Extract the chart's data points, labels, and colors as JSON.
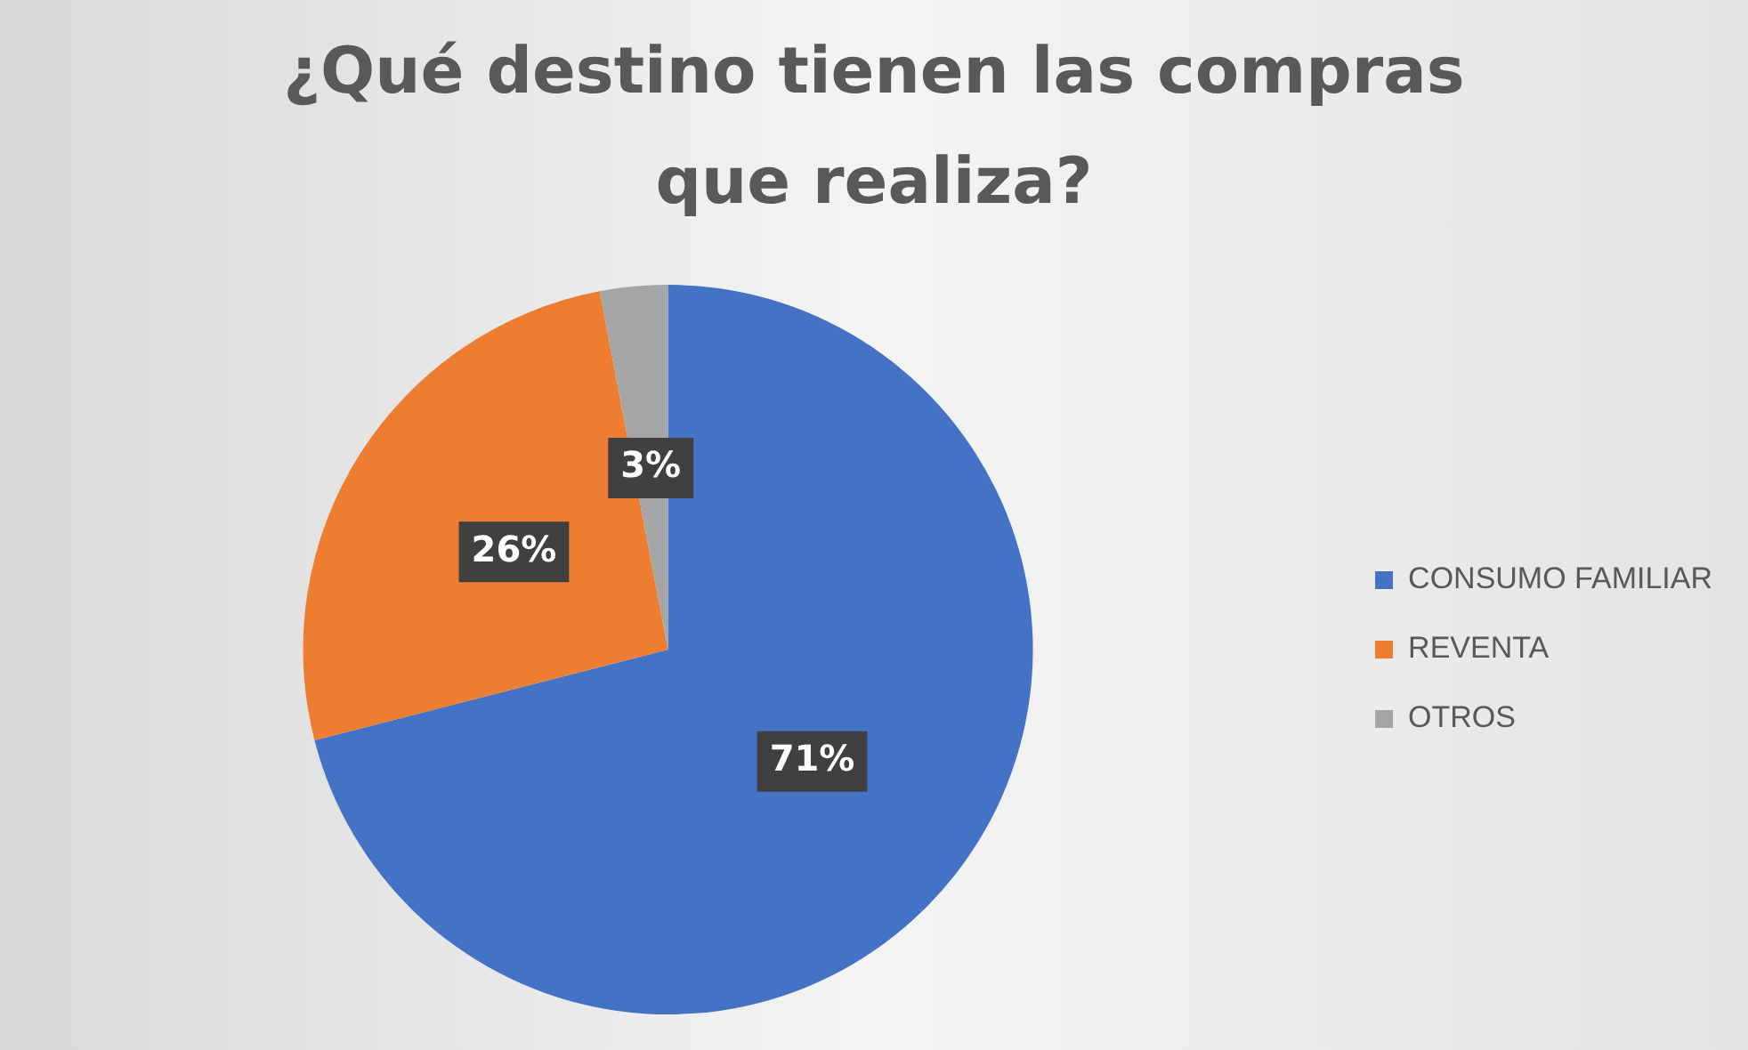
{
  "chart_data": {
    "type": "pie",
    "title": "¿Qué destino tienen las compras que realiza?",
    "categories": [
      "CONSUMO FAMILIAR",
      "REVENTA",
      "OTROS"
    ],
    "values": [
      71,
      26,
      3
    ],
    "value_labels": [
      "71%",
      "26%",
      "3%"
    ],
    "colors": [
      "#4472c4",
      "#ed7d31",
      "#a5a5a5"
    ],
    "legend": "right"
  }
}
